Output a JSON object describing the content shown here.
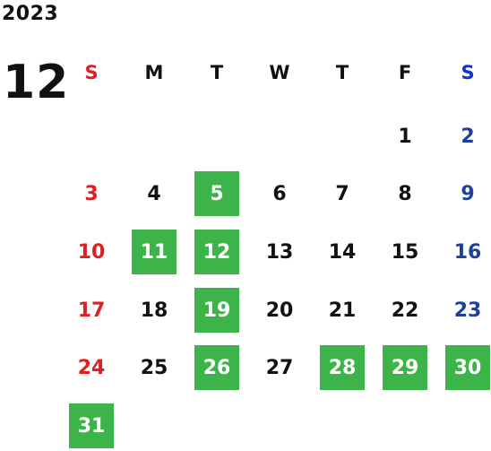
{
  "calendar": {
    "year": "2023",
    "month": "12",
    "weekdays": [
      "S",
      "M",
      "T",
      "W",
      "T",
      "F",
      "S"
    ],
    "first_weekday_index": 5,
    "days_in_month": 31,
    "highlighted_days": [
      5,
      11,
      12,
      19,
      26,
      28,
      29,
      30,
      31
    ],
    "colors": {
      "sunday": "#e02020",
      "saturday": "#2040a0",
      "saturday_header": "#1030d0",
      "weekday": "#111111",
      "highlight_bg": "#3cb44a",
      "highlight_text": "#ffffff"
    }
  }
}
